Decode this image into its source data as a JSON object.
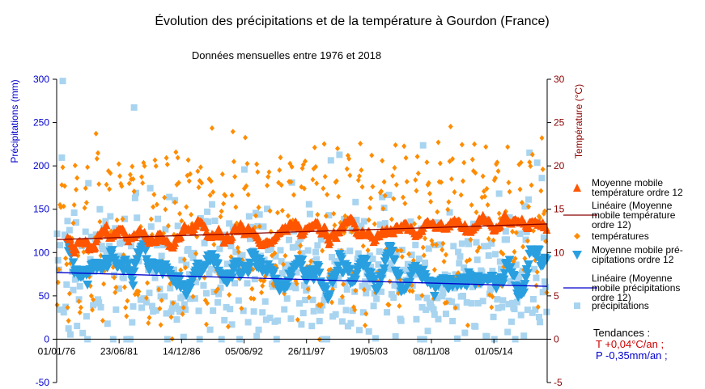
{
  "chart_data": {
    "type": "scatter",
    "title": "Évolution des précipitations et de la température à Gourdon (France)",
    "subtitle": "Données mensuelles entre 1976 et 2018",
    "ylabel": "Précipitations (mm)",
    "y2label": "Température (°C)",
    "ylim": [
      -50,
      300
    ],
    "y2lim": [
      -5,
      30
    ],
    "yticks": [
      "-50",
      "0",
      "50",
      "100",
      "150",
      "200",
      "250",
      "300"
    ],
    "y2ticks": [
      "-5",
      "0",
      "5",
      "10",
      "15",
      "20",
      "25",
      "30"
    ],
    "xlim": [
      "1976-01-01",
      "2018-12-31"
    ],
    "xticks": [
      "01/01/76",
      "23/06/81",
      "14/12/86",
      "05/06/92",
      "26/11/97",
      "19/05/03",
      "08/11/08",
      "01/05/14"
    ],
    "grid": false,
    "legend_position": "right",
    "colors": {
      "temperature": "#ff8c00",
      "temperature_ma": "#ff5500",
      "temperature_trend": "#8b0000",
      "precipitation": "#a8d4f0",
      "precipitation_ma": "#2a9fe0",
      "precipitation_trend": "#0000cc",
      "left_axis": "#0000cc",
      "right_axis": "#8b0000"
    },
    "series": [
      {
        "name": "Moyenne mobile température ordre 12",
        "type": "line",
        "axis": "right",
        "marker": "triangle-up",
        "x_start": "1976-12",
        "x_end": "2018-12",
        "y_range": [
          10.5,
          14
        ]
      },
      {
        "name": "Linéaire (Moyenne mobile température ordre 12)",
        "type": "trend",
        "axis": "right",
        "x": [
          "1976-01-01",
          "2018-12-31"
        ],
        "y": [
          11.5,
          13.3
        ]
      },
      {
        "name": "températures",
        "type": "scatter",
        "axis": "right",
        "marker": "diamond",
        "x_start": "1976-01",
        "x_end": "2018-12",
        "y_range": [
          -1,
          26.5
        ],
        "annual_cycle": {
          "winter_mean": 5,
          "summer_mean": 20
        }
      },
      {
        "name": "Moyenne mobile pré-cipitations ordre 12",
        "type": "line",
        "axis": "left",
        "marker": "triangle-down",
        "x_start": "1976-12",
        "x_end": "2018-12",
        "y_range": [
          38,
          105
        ]
      },
      {
        "name": "Linéaire (Moyenne mobile précipitations ordre 12)",
        "type": "trend",
        "axis": "left",
        "x": [
          "1976-01-01",
          "2018-12-31"
        ],
        "y": [
          77,
          61
        ]
      },
      {
        "name": "précipitations",
        "type": "scatter",
        "axis": "left",
        "marker": "square",
        "x_start": "1976-01",
        "x_end": "2018-12",
        "y_range": [
          0,
          298
        ],
        "typical_mean": 68
      }
    ],
    "legend": {
      "entries": [
        "Moyenne mobile température ordre 12",
        "Linéaire (Moyenne mobile température ordre 12)",
        "températures",
        "Moyenne mobile pré-cipitations ordre 12",
        "Linéaire (Moyenne mobile précipitations ordre 12)",
        "précipitations"
      ],
      "entry_lines": [
        [
          "Moyenne mobile",
          "température ordre 12"
        ],
        [
          "Linéaire (Moyenne",
          "mobile température",
          "ordre 12)"
        ],
        [
          "températures"
        ],
        [
          "Moyenne mobile pré-",
          "cipitations ordre 12"
        ],
        [
          "Linéaire (Moyenne",
          "mobile précipitations",
          "ordre 12)"
        ],
        [
          "précipitations"
        ]
      ]
    },
    "annotations": {
      "heading": "Tendances :",
      "temperature": "T +0,04°C/an ;",
      "precipitation": "P -0,35mm/an ;"
    }
  }
}
